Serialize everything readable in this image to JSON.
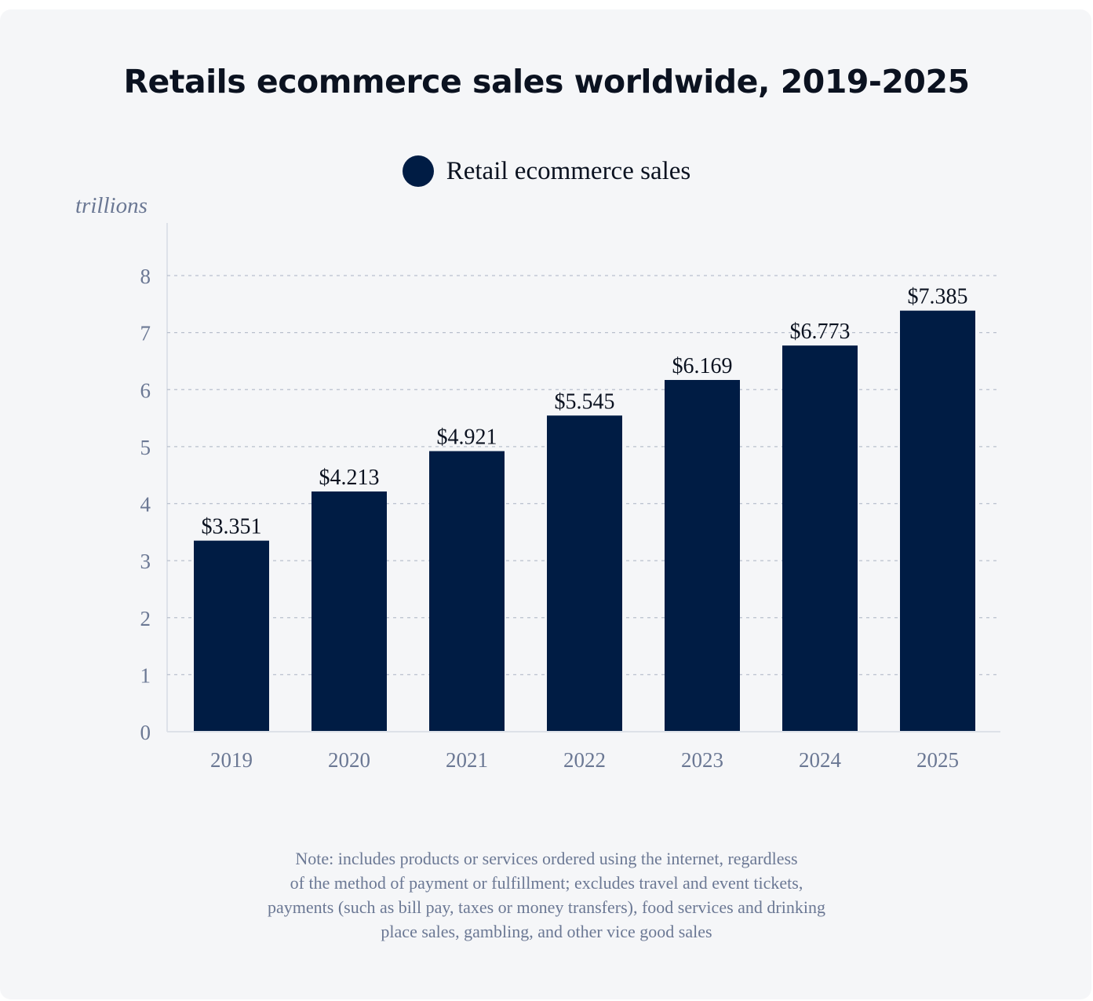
{
  "chart_data": {
    "type": "bar",
    "title": "Retails ecommerce sales worldwide, 2019-2025",
    "legend": [
      "Retail ecommerce sales"
    ],
    "legend_placement": "top-center",
    "ylabel": "trillions",
    "xlabel": "",
    "categories": [
      "2019",
      "2020",
      "2021",
      "2022",
      "2023",
      "2024",
      "2025"
    ],
    "values": [
      3.351,
      4.213,
      4.921,
      5.545,
      6.169,
      6.773,
      7.385
    ],
    "data_labels": [
      "$3.351",
      "$4.213",
      "$4.921",
      "$5.545",
      "$6.169",
      "$6.773",
      "$7.385"
    ],
    "ylim": [
      0,
      8
    ],
    "yticks": [
      "0",
      "1",
      "2",
      "3",
      "4",
      "5",
      "6",
      "7",
      "8"
    ],
    "grid": true,
    "bar_color": "#001c44"
  },
  "note_lines": [
    "Note: includes products or services ordered using the internet, regardless",
    "of the method of payment or fulfillment; excludes travel and event tickets,",
    "payments (such as bill pay, taxes or money transfers), food services and drinking",
    "place sales, gambling, and other vice good sales"
  ]
}
